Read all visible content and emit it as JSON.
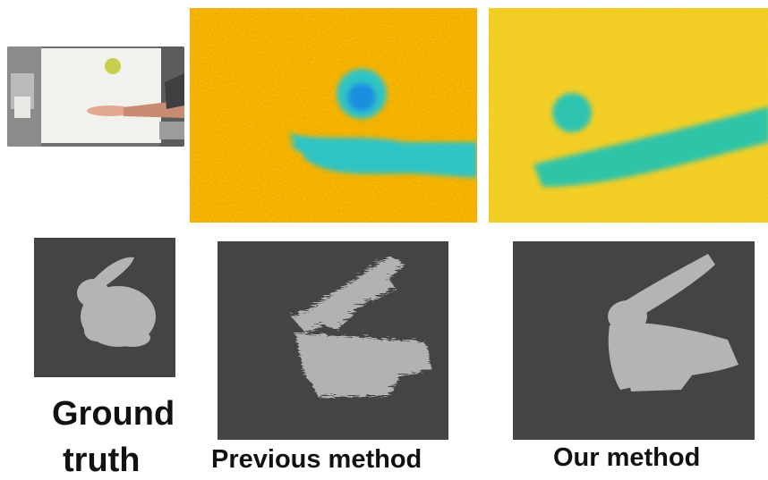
{
  "captions": {
    "ground_truth_line1": "Ground",
    "ground_truth_line2": "truth",
    "previous_method": "Previous method",
    "our_method": "Our method"
  },
  "colors": {
    "background": "#ffffff",
    "render_background": "#444444",
    "mesh": "#b4b4b4",
    "depth_warm": "#f5b800",
    "depth_hot": "#e05a00",
    "depth_cool": "#2fc4c4",
    "depth_core": "#1a8ee0"
  }
}
